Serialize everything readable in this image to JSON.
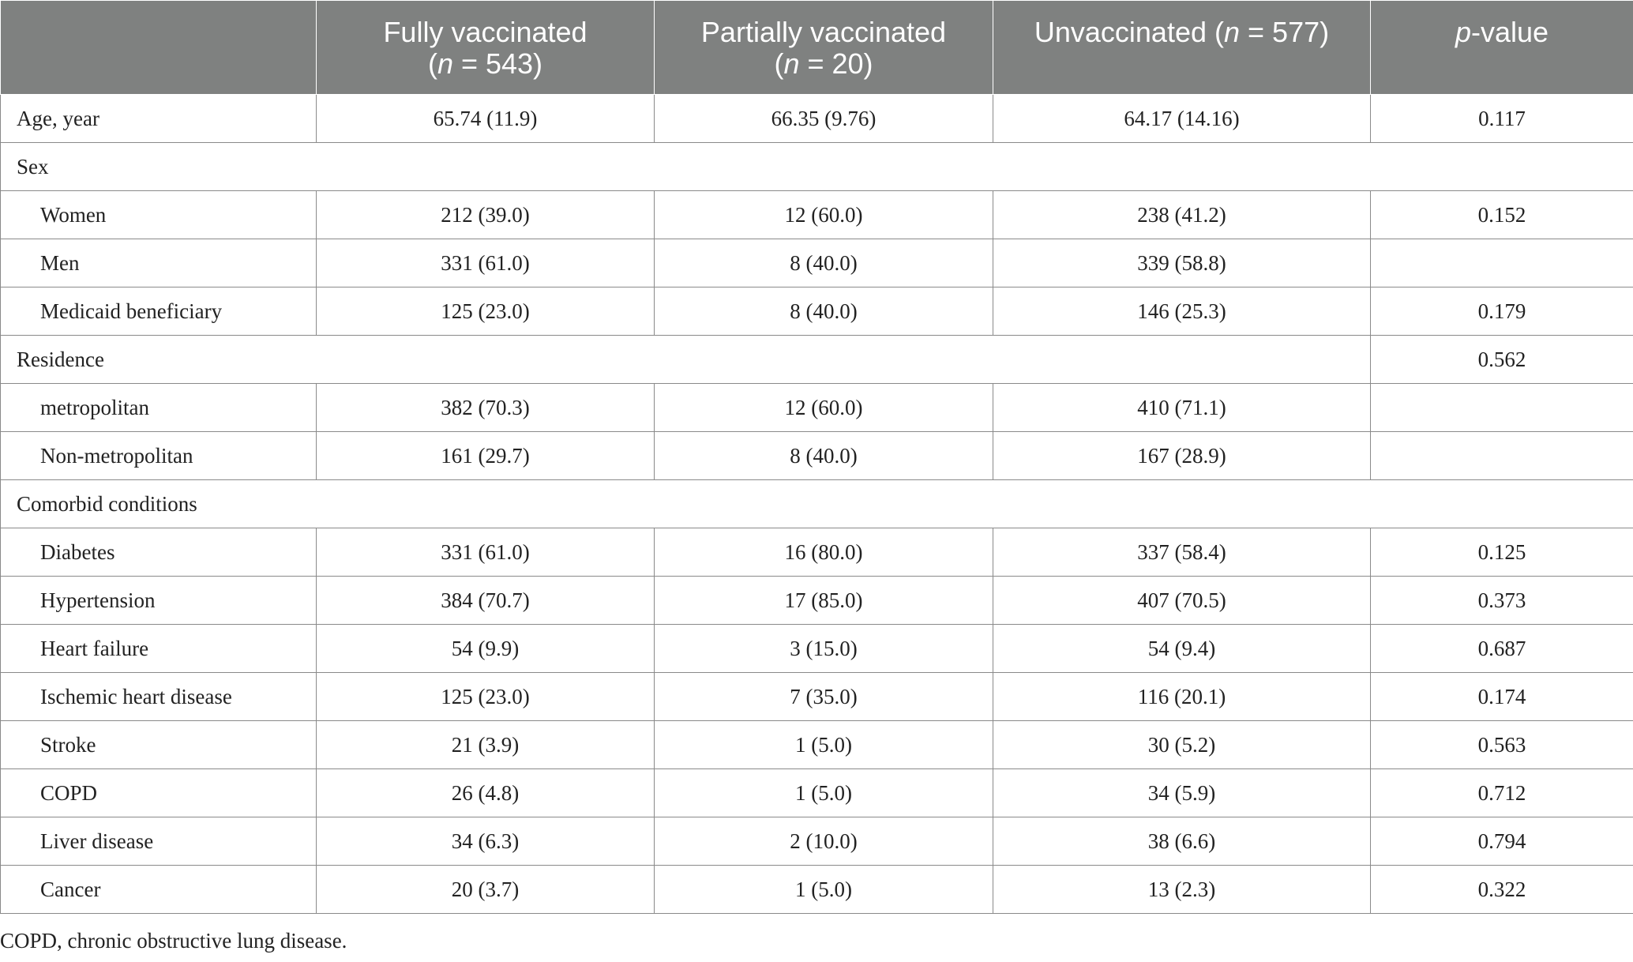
{
  "header": {
    "col0": "",
    "col1": {
      "line1": "Fully vaccinated",
      "n_label": "n",
      "n_rest": " = 543)"
    },
    "col2": {
      "line1": "Partially vaccinated",
      "n_label": "n",
      "n_rest": " = 20)"
    },
    "col3": {
      "prefix": "Unvaccinated (",
      "n_label": "n",
      "n_rest": " = 577)"
    },
    "col4": {
      "p_label": "p",
      "rest": "-value"
    }
  },
  "rows": [
    {
      "label": "Age, year",
      "indent": false,
      "v1": "65.74 (11.9)",
      "v2": "66.35 (9.76)",
      "v3": "64.17 (14.16)",
      "p": "0.117"
    },
    {
      "label": "Sex",
      "section": true
    },
    {
      "label": "Women",
      "indent": true,
      "v1": "212 (39.0)",
      "v2": "12 (60.0)",
      "v3": "238 (41.2)",
      "p": "0.152"
    },
    {
      "label": "Men",
      "indent": true,
      "v1": "331 (61.0)",
      "v2": "8 (40.0)",
      "v3": "339 (58.8)",
      "p": ""
    },
    {
      "label": "Medicaid beneficiary",
      "indent": true,
      "v1": "125 (23.0)",
      "v2": "8 (40.0)",
      "v3": "146 (25.3)",
      "p": "0.179"
    },
    {
      "label": "Residence",
      "section_with_p": true,
      "p": "0.562"
    },
    {
      "label": "metropolitan",
      "indent": true,
      "v1": "382 (70.3)",
      "v2": "12 (60.0)",
      "v3": "410 (71.1)",
      "p": ""
    },
    {
      "label": "Non-metropolitan",
      "indent": true,
      "v1": "161 (29.7)",
      "v2": "8 (40.0)",
      "v3": "167 (28.9)",
      "p": ""
    },
    {
      "label": "Comorbid conditions",
      "section": true
    },
    {
      "label": "Diabetes",
      "indent": true,
      "v1": "331 (61.0)",
      "v2": "16 (80.0)",
      "v3": "337 (58.4)",
      "p": "0.125"
    },
    {
      "label": "Hypertension",
      "indent": true,
      "v1": "384 (70.7)",
      "v2": "17 (85.0)",
      "v3": "407 (70.5)",
      "p": "0.373"
    },
    {
      "label": "Heart failure",
      "indent": true,
      "v1": "54 (9.9)",
      "v2": "3 (15.0)",
      "v3": "54 (9.4)",
      "p": "0.687"
    },
    {
      "label": "Ischemic heart disease",
      "indent": true,
      "v1": "125 (23.0)",
      "v2": "7 (35.0)",
      "v3": "116 (20.1)",
      "p": "0.174"
    },
    {
      "label": "Stroke",
      "indent": true,
      "v1": "21 (3.9)",
      "v2": "1 (5.0)",
      "v3": "30 (5.2)",
      "p": "0.563"
    },
    {
      "label": "COPD",
      "indent": true,
      "v1": "26 (4.8)",
      "v2": "1 (5.0)",
      "v3": "34 (5.9)",
      "p": "0.712"
    },
    {
      "label": "Liver disease",
      "indent": true,
      "v1": "34 (6.3)",
      "v2": "2 (10.0)",
      "v3": "38 (6.6)",
      "p": "0.794"
    },
    {
      "label": "Cancer",
      "indent": true,
      "v1": "20 (3.7)",
      "v2": "1 (5.0)",
      "v3": "13 (2.3)",
      "p": "0.322"
    }
  ],
  "footnote": "COPD, chronic obstructive lung disease.",
  "colors": {
    "header_bg": "#7f8180",
    "header_text": "#ffffff",
    "border": "#8a8a8a"
  }
}
